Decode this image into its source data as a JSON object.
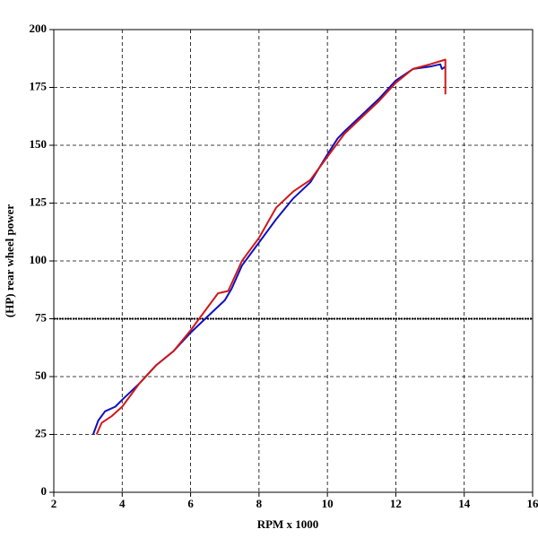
{
  "chart_data": {
    "type": "line",
    "x_label": "RPM x 1000",
    "y_label": "(HP) rear wheel power",
    "xlim": [
      2,
      16
    ],
    "xticks": [
      2,
      4,
      6,
      8,
      10,
      12,
      14,
      16
    ],
    "ylim": [
      0,
      200
    ],
    "yticks": [
      0,
      25,
      50,
      75,
      100,
      125,
      150,
      175,
      200
    ],
    "grid": true,
    "reference_line": 75,
    "series": [
      {
        "color": "#1010c0",
        "x": [
          3.15,
          3.3,
          3.5,
          3.8,
          4.0,
          4.5,
          5.0,
          5.5,
          6.0,
          6.5,
          7.0,
          7.2,
          7.5,
          8.0,
          8.5,
          9.0,
          9.5,
          10.0,
          10.3,
          10.5,
          11.0,
          11.5,
          12.0,
          12.5,
          13.0,
          13.3,
          13.35,
          13.45
        ],
        "values": [
          25,
          31,
          35,
          37,
          40,
          47,
          55,
          61,
          69,
          76,
          83,
          88,
          98,
          108,
          118,
          127,
          134,
          146,
          153,
          156,
          163,
          170,
          178,
          183,
          184,
          185,
          183,
          184
        ]
      },
      {
        "color": "#d01818",
        "x": [
          3.25,
          3.4,
          3.7,
          4.0,
          4.5,
          5.0,
          5.5,
          6.0,
          6.5,
          6.8,
          7.1,
          7.5,
          8.0,
          8.5,
          9.0,
          9.5,
          10.0,
          10.5,
          11.0,
          11.5,
          12.0,
          12.5,
          13.0,
          13.45,
          13.45
        ],
        "values": [
          25,
          30,
          33,
          37,
          47,
          55,
          61,
          70,
          80,
          86,
          87,
          100,
          110,
          123,
          130,
          135,
          145,
          155,
          162,
          169,
          177,
          183,
          185,
          187,
          172
        ]
      }
    ]
  }
}
